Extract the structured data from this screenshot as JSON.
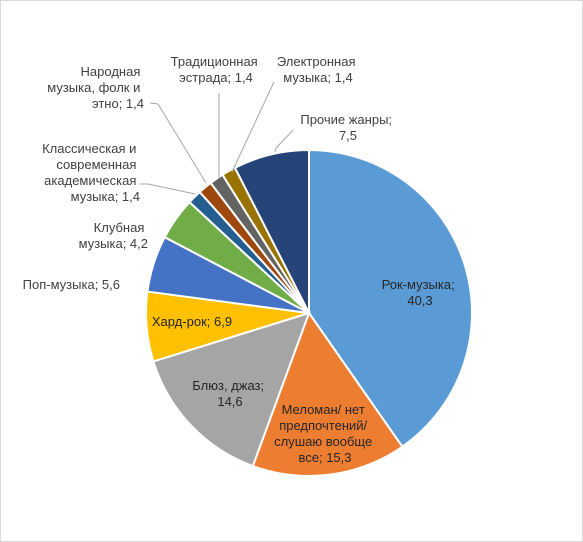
{
  "chart_data": {
    "type": "pie",
    "title": "",
    "slices": [
      {
        "label": "Рок-музыка;",
        "value": 40.3,
        "value_text": "40,3",
        "color": "#5b9bd5"
      },
      {
        "label": "Меломан/ нет предпочтений/ слушаю вообще все;",
        "value": 15.3,
        "value_text": "15,3",
        "color": "#ed7d31"
      },
      {
        "label": "Блюз, джаз;",
        "value": 14.6,
        "value_text": "14,6",
        "color": "#a5a5a5"
      },
      {
        "label": "Хард-рок;",
        "value": 6.9,
        "value_text": "6,9",
        "color": "#ffc000"
      },
      {
        "label": "Поп-музыка;",
        "value": 5.6,
        "value_text": "5,6",
        "color": "#4472c4"
      },
      {
        "label": "Клубная музыка;",
        "value": 4.2,
        "value_text": "4,2",
        "color": "#70ad47"
      },
      {
        "label": "Классическая и современная академическая музыка;",
        "value": 1.4,
        "value_text": "1,4",
        "color": "#255e91"
      },
      {
        "label": "Народная музыка, фолк и этно;",
        "value": 1.4,
        "value_text": "1,4",
        "color": "#9e480e"
      },
      {
        "label": "Традиционная эстрада;",
        "value": 1.4,
        "value_text": "1,4",
        "color": "#636363"
      },
      {
        "label": "Электронная музыка;",
        "value": 1.4,
        "value_text": "1,4",
        "color": "#997300"
      },
      {
        "label": "Прочие жанры;",
        "value": 7.5,
        "value_text": "7,5",
        "color": "#264478"
      }
    ]
  },
  "labels": {
    "rock": [
      "Рок-музыка;",
      "40,3"
    ],
    "meloman": [
      "Меломан/ нет",
      "предпочтений/",
      "слушаю вообще",
      "все; 15,3"
    ],
    "blues": [
      "Блюз, джаз;",
      "14,6"
    ],
    "hardrock": [
      "Хард-рок; 6,9"
    ],
    "pop": [
      "Поп-музыка; 5,6"
    ],
    "club": [
      "Клубная",
      "музыка; 4,2"
    ],
    "classic": [
      "Классическая и",
      "современная",
      "академическая",
      "музыка; 1,4"
    ],
    "folk": [
      "Народная",
      "музыка, фолк и",
      "этно; 1,4"
    ],
    "estrada": [
      "Традиционная",
      "эстрада; 1,4"
    ],
    "electro": [
      "Электронная",
      "музыка; 1,4"
    ],
    "other": [
      "Прочие жанры;",
      "7,5"
    ]
  }
}
